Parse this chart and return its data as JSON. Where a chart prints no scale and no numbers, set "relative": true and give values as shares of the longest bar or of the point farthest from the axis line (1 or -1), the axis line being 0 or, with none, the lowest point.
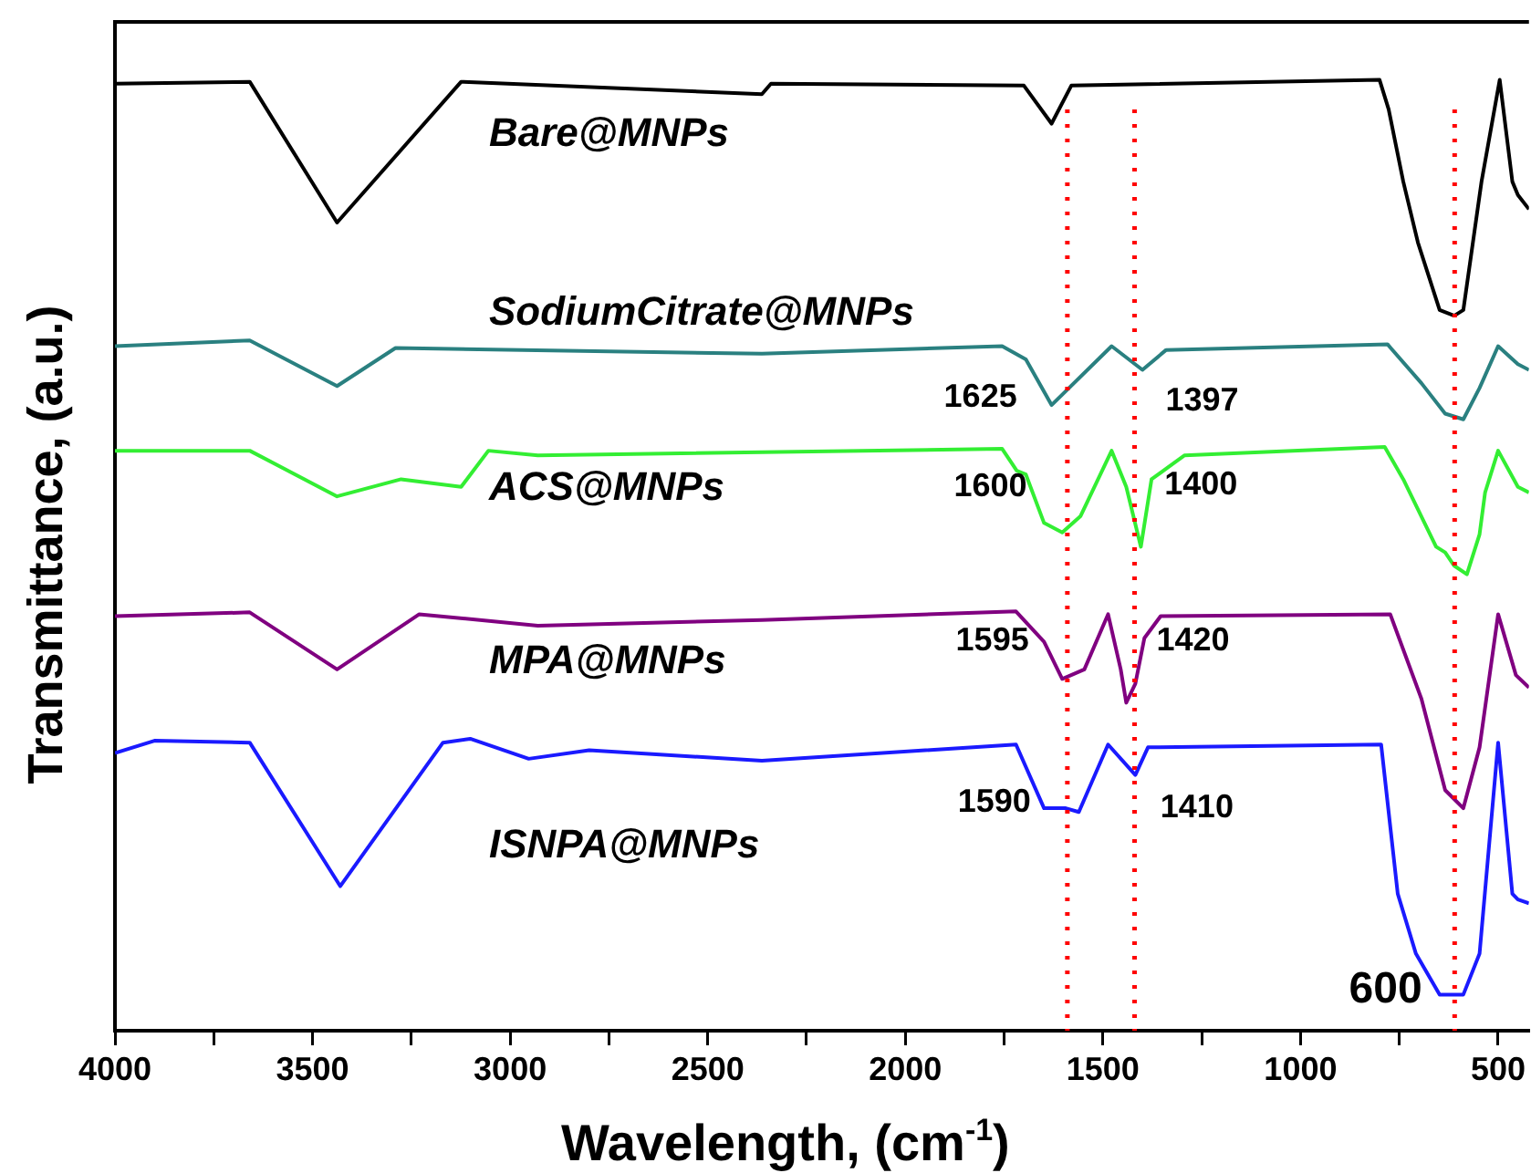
{
  "chart_data": {
    "type": "line",
    "xlabel": "Wavelength, (cm$^{-1}$)",
    "ylabel": "Transmittance, (a.u.)",
    "relative": true,
    "xlim": [
      4000,
      422
    ],
    "xticks": [
      4000,
      {
        "value": 3750,
        "label": null
      },
      3500,
      {
        "value": 3250,
        "label": null
      },
      3000,
      {
        "value": 2750,
        "label": null
      },
      2500,
      {
        "value": 2250,
        "label": null
      },
      2000,
      {
        "value": 1750,
        "label": null
      },
      1500,
      {
        "value": 1250,
        "label": null
      },
      1000,
      {
        "value": 750,
        "label": null
      },
      500
    ],
    "grid": false,
    "legend": false,
    "marker": "none",
    "line_style": "solid",
    "series": [
      {
        "name": "Bare@MNPs",
        "color": "#000000",
        "x": [
          4000,
          3659,
          3438,
          3124,
          2363,
          2340,
          1700,
          1630,
          1580,
          800,
          777,
          740,
          703,
          648,
          611,
          588,
          542,
          496,
          464,
          450,
          422
        ],
        "values": [
          0.996,
          0.998,
          0.85,
          0.998,
          0.985,
          0.996,
          0.994,
          0.954,
          0.994,
          1.0,
          0.969,
          0.893,
          0.829,
          0.758,
          0.752,
          0.758,
          0.893,
          1.0,
          0.893,
          0.879,
          0.864
        ]
      },
      {
        "name": "SodiumCitrate@MNPs",
        "color": "#2a8080",
        "x": [
          4000,
          3659,
          3438,
          3290,
          2363,
          1755,
          1695,
          1630,
          1478,
          1400,
          1340,
          780,
          694,
          634,
          588,
          547,
          500,
          450,
          422
        ],
        "values": [
          0.72,
          0.726,
          0.678,
          0.718,
          0.712,
          0.72,
          0.706,
          0.658,
          0.72,
          0.695,
          0.716,
          0.722,
          0.681,
          0.649,
          0.643,
          0.676,
          0.72,
          0.701,
          0.695
        ]
      },
      {
        "name": "ACS@MNPs",
        "color": "#33ee33",
        "x": [
          4000,
          3659,
          3438,
          3276,
          3124,
          3055,
          2930,
          1755,
          1718,
          1695,
          1649,
          1603,
          1557,
          1478,
          1441,
          1404,
          1377,
          1294,
          787,
          740,
          657,
          634,
          611,
          579,
          547,
          533,
          500,
          450,
          422
        ],
        "values": [
          0.61,
          0.61,
          0.562,
          0.58,
          0.572,
          0.61,
          0.605,
          0.612,
          0.589,
          0.585,
          0.534,
          0.524,
          0.541,
          0.61,
          0.572,
          0.509,
          0.58,
          0.605,
          0.614,
          0.58,
          0.509,
          0.503,
          0.489,
          0.48,
          0.522,
          0.566,
          0.61,
          0.572,
          0.566
        ]
      },
      {
        "name": "MPA@MNPs",
        "color": "#800080",
        "x": [
          4000,
          3659,
          3438,
          3230,
          2930,
          2363,
          1720,
          1649,
          1603,
          1547,
          1487,
          1455,
          1441,
          1418,
          1395,
          1354,
          773,
          694,
          634,
          588,
          547,
          500,
          455,
          422
        ],
        "values": [
          0.436,
          0.44,
          0.38,
          0.438,
          0.426,
          0.432,
          0.441,
          0.409,
          0.37,
          0.38,
          0.438,
          0.38,
          0.345,
          0.365,
          0.413,
          0.436,
          0.438,
          0.349,
          0.253,
          0.234,
          0.298,
          0.438,
          0.374,
          0.361
        ]
      },
      {
        "name": "ISNPA@MNPs",
        "color": "#1a1aff",
        "x": [
          4000,
          3900,
          3659,
          3430,
          3170,
          3101,
          2953,
          2800,
          2363,
          1720,
          1649,
          1594,
          1561,
          1487,
          1418,
          1386,
          796,
          754,
          708,
          648,
          588,
          547,
          500,
          464,
          450,
          422
        ],
        "values": [
          0.292,
          0.305,
          0.303,
          0.152,
          0.303,
          0.307,
          0.286,
          0.295,
          0.284,
          0.301,
          0.234,
          0.234,
          0.23,
          0.301,
          0.269,
          0.298,
          0.301,
          0.144,
          0.081,
          0.038,
          0.038,
          0.081,
          0.303,
          0.144,
          0.138,
          0.134
        ]
      }
    ],
    "ref_lines": [
      {
        "axis": "x",
        "value": 1590,
        "color": "#ff0000",
        "line_style": "dotted"
      },
      {
        "axis": "x",
        "value": 1420,
        "color": "#ff0000",
        "line_style": "dotted"
      },
      {
        "axis": "x",
        "value": 610,
        "color": "#ff0000",
        "line_style": "dotted"
      }
    ],
    "annotations": [
      {
        "text": "1625",
        "x": 1625,
        "y": 0.666
      },
      {
        "text": "1397",
        "x": 1397,
        "y": 0.662
      },
      {
        "text": "1600",
        "x": 1600,
        "y": 0.572
      },
      {
        "text": "1400",
        "x": 1400,
        "y": 0.574
      },
      {
        "text": "1595",
        "x": 1595,
        "y": 0.41
      },
      {
        "text": "1420",
        "x": 1420,
        "y": 0.41
      },
      {
        "text": "1590",
        "x": 1590,
        "y": 0.24
      },
      {
        "text": "1410",
        "x": 1410,
        "y": 0.234
      },
      {
        "text": "600",
        "x": 600,
        "y": 0.042
      }
    ]
  }
}
